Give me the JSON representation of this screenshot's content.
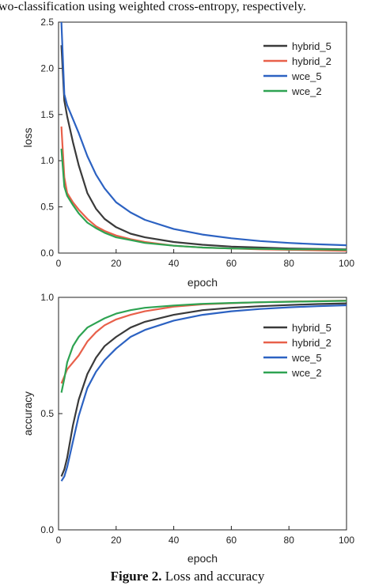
{
  "captions": {
    "top_fragment": "wo-classification using weighted cross-entropy, respectively.",
    "figure_label": "Figure 2.",
    "figure_title": "Loss and accuracy"
  },
  "colors": {
    "hybrid_5": "#3a3a3a",
    "hybrid_2": "#e8604a",
    "wce_5": "#2c62c2",
    "wce_2": "#2ea352"
  },
  "chart_data": [
    {
      "type": "line",
      "xlabel": "epoch",
      "ylabel": "loss",
      "xlim": [
        0,
        100
      ],
      "ylim": [
        0,
        2.5
      ],
      "xticks": [
        "0",
        "20",
        "40",
        "60",
        "80",
        "100"
      ],
      "yticks": [
        "0.0",
        "0.5",
        "1.0",
        "1.5",
        "2.0",
        "2.5"
      ],
      "legend_position": "top-right",
      "series": [
        {
          "name": "hybrid_5",
          "color": "#3a3a3a",
          "x": [
            1,
            2,
            3,
            5,
            7,
            10,
            13,
            16,
            20,
            25,
            30,
            40,
            50,
            60,
            70,
            80,
            90,
            100
          ],
          "y": [
            2.25,
            1.65,
            1.48,
            1.2,
            0.95,
            0.65,
            0.48,
            0.37,
            0.28,
            0.21,
            0.17,
            0.12,
            0.09,
            0.07,
            0.06,
            0.05,
            0.045,
            0.04
          ]
        },
        {
          "name": "hybrid_2",
          "color": "#e8604a",
          "x": [
            1,
            2,
            3,
            5,
            7,
            10,
            13,
            16,
            20,
            25,
            30,
            40,
            50,
            60,
            70,
            80,
            90,
            100
          ],
          "y": [
            1.37,
            0.82,
            0.65,
            0.55,
            0.47,
            0.37,
            0.29,
            0.24,
            0.19,
            0.15,
            0.12,
            0.08,
            0.06,
            0.05,
            0.04,
            0.035,
            0.03,
            0.025
          ]
        },
        {
          "name": "wce_5",
          "color": "#2c62c2",
          "x": [
            1,
            2,
            3,
            5,
            7,
            10,
            13,
            16,
            20,
            25,
            30,
            40,
            50,
            60,
            70,
            80,
            90,
            100
          ],
          "y": [
            2.5,
            1.72,
            1.6,
            1.45,
            1.3,
            1.05,
            0.85,
            0.7,
            0.55,
            0.44,
            0.36,
            0.26,
            0.2,
            0.16,
            0.13,
            0.11,
            0.095,
            0.085
          ]
        },
        {
          "name": "wce_2",
          "color": "#2ea352",
          "x": [
            1,
            2,
            3,
            5,
            7,
            10,
            13,
            16,
            20,
            25,
            30,
            40,
            50,
            60,
            70,
            80,
            90,
            100
          ],
          "y": [
            1.13,
            0.72,
            0.62,
            0.52,
            0.43,
            0.33,
            0.27,
            0.22,
            0.17,
            0.14,
            0.11,
            0.08,
            0.06,
            0.05,
            0.045,
            0.04,
            0.04,
            0.035
          ]
        }
      ]
    },
    {
      "type": "line",
      "xlabel": "epoch",
      "ylabel": "accuracy",
      "xlim": [
        0,
        100
      ],
      "ylim": [
        0.0,
        1.0
      ],
      "xticks": [
        "0",
        "20",
        "40",
        "60",
        "80",
        "100"
      ],
      "yticks": [
        "0.0",
        "0.5",
        "1.0"
      ],
      "legend_position": "top-right",
      "series": [
        {
          "name": "hybrid_5",
          "color": "#3a3a3a",
          "x": [
            1,
            2,
            3,
            5,
            7,
            10,
            13,
            16,
            20,
            25,
            30,
            40,
            50,
            60,
            70,
            80,
            90,
            100
          ],
          "y": [
            0.23,
            0.26,
            0.31,
            0.45,
            0.56,
            0.67,
            0.74,
            0.79,
            0.83,
            0.87,
            0.895,
            0.925,
            0.945,
            0.955,
            0.962,
            0.967,
            0.971,
            0.974
          ]
        },
        {
          "name": "hybrid_2",
          "color": "#e8604a",
          "x": [
            1,
            2,
            3,
            5,
            7,
            10,
            13,
            16,
            20,
            25,
            30,
            40,
            50,
            60,
            70,
            80,
            90,
            100
          ],
          "y": [
            0.63,
            0.66,
            0.69,
            0.72,
            0.75,
            0.81,
            0.85,
            0.88,
            0.905,
            0.925,
            0.94,
            0.96,
            0.97,
            0.975,
            0.979,
            0.982,
            0.984,
            0.986
          ]
        },
        {
          "name": "wce_5",
          "color": "#2c62c2",
          "x": [
            1,
            2,
            3,
            5,
            7,
            10,
            13,
            16,
            20,
            25,
            30,
            40,
            50,
            60,
            70,
            80,
            90,
            100
          ],
          "y": [
            0.21,
            0.23,
            0.27,
            0.38,
            0.49,
            0.61,
            0.68,
            0.73,
            0.78,
            0.83,
            0.86,
            0.9,
            0.925,
            0.94,
            0.95,
            0.957,
            0.962,
            0.966
          ]
        },
        {
          "name": "wce_2",
          "color": "#2ea352",
          "x": [
            1,
            2,
            3,
            5,
            7,
            10,
            13,
            16,
            20,
            25,
            30,
            40,
            50,
            60,
            70,
            80,
            90,
            100
          ],
          "y": [
            0.59,
            0.65,
            0.72,
            0.79,
            0.83,
            0.87,
            0.89,
            0.91,
            0.93,
            0.945,
            0.955,
            0.965,
            0.972,
            0.976,
            0.979,
            0.981,
            0.983,
            0.985
          ]
        }
      ]
    }
  ]
}
